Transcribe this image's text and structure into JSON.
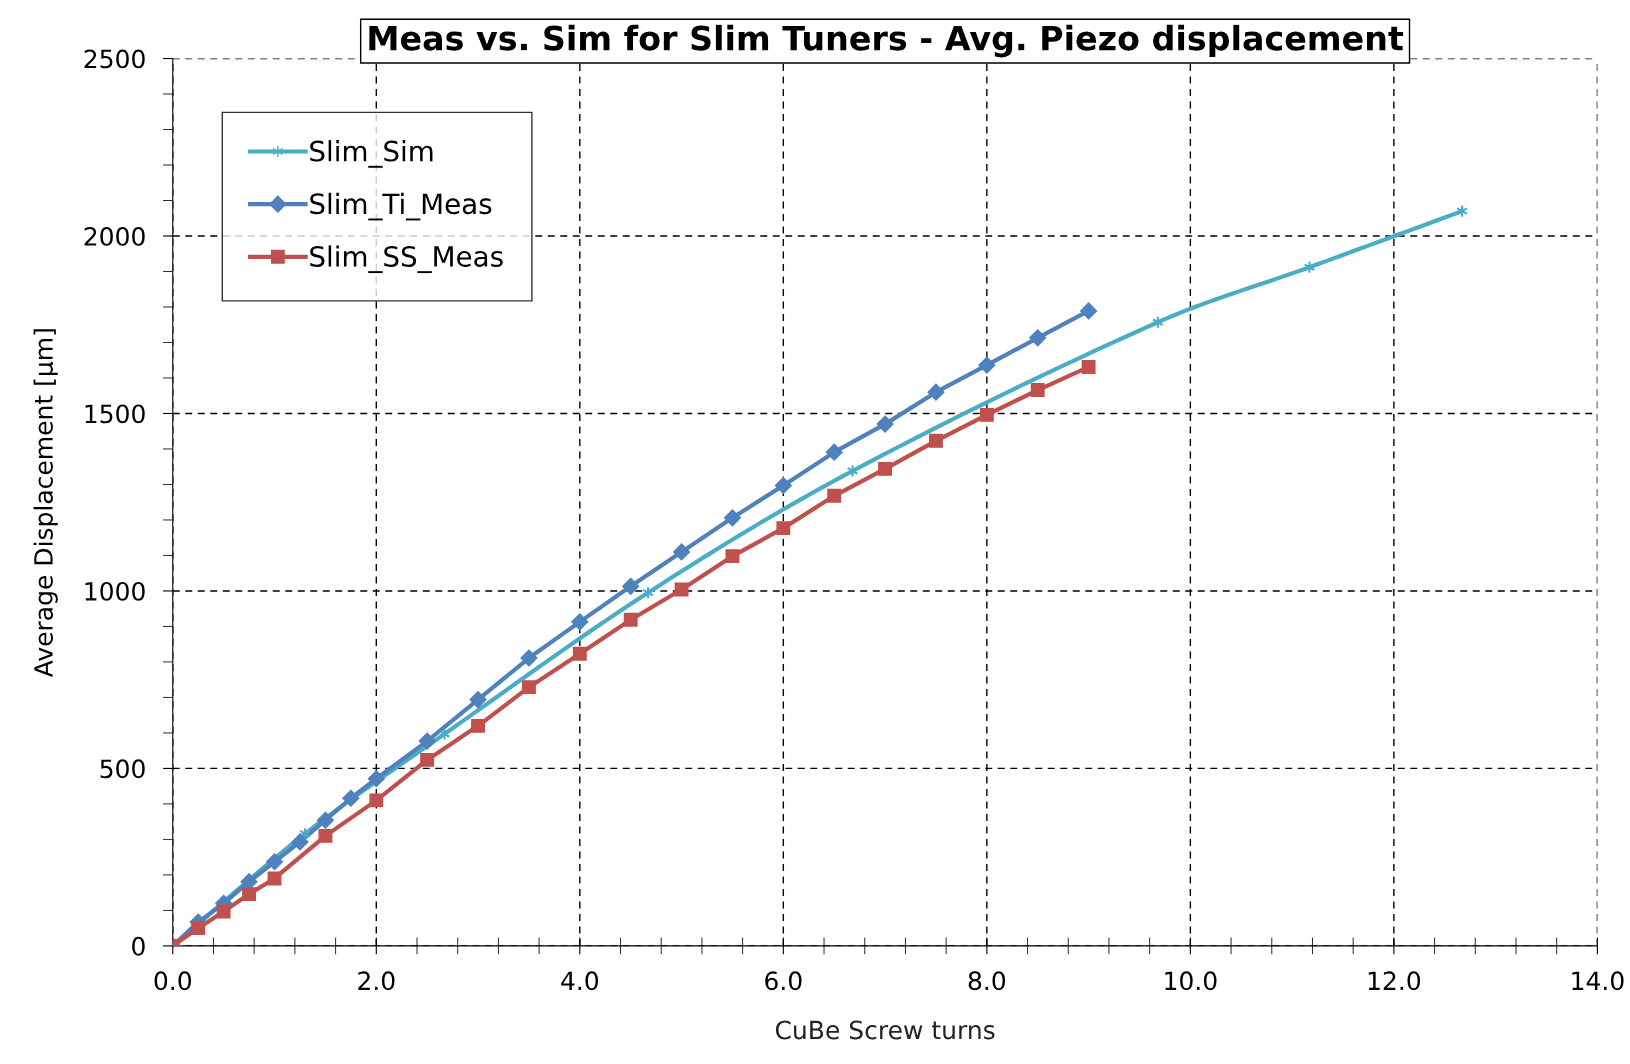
{
  "chart_data": {
    "type": "line",
    "title": "Meas vs. Sim for Slim Tuners - Avg. Piezo displacement",
    "xlabel": "CuBe Screw turns",
    "ylabel": "Average Displacement [µm]",
    "xlim": [
      0,
      14
    ],
    "xticks": [
      {
        "value": 0,
        "label": "0.0"
      },
      {
        "value": 2,
        "label": "2.0"
      },
      {
        "value": 4,
        "label": "4.0"
      },
      {
        "value": 6,
        "label": "6.0"
      },
      {
        "value": 8,
        "label": "8.0"
      },
      {
        "value": 10,
        "label": "10.0"
      },
      {
        "value": 12,
        "label": "12.0"
      },
      {
        "value": 14,
        "label": "14.0"
      }
    ],
    "ylim": [
      0,
      2500
    ],
    "yticks": [
      0,
      500,
      1000,
      1500,
      2000,
      2500
    ],
    "grid": true,
    "legend": "top left",
    "series": [
      {
        "name": "Slim_Sim",
        "color": "#4bacc6",
        "marker": "cross",
        "x": [
          0,
          1.3,
          2.67,
          4.67,
          6.68,
          9.68,
          11.17,
          12.67
        ],
        "values": [
          0,
          316,
          597,
          995,
          1338,
          1757,
          1912,
          2070
        ]
      },
      {
        "name": "Slim_Ti_Meas",
        "color": "#4f81bd",
        "marker": "diamond",
        "x": [
          0,
          0.25,
          0.5,
          0.75,
          1.0,
          1.25,
          1.5,
          1.75,
          2.0,
          2.5,
          3.0,
          3.5,
          4.0,
          4.5,
          5.0,
          5.5,
          6.0,
          6.5,
          7.0,
          7.5,
          8.0,
          8.5,
          9.0
        ],
        "values": [
          0,
          67,
          120,
          181,
          237,
          293,
          354,
          416,
          471,
          577,
          694,
          811,
          913,
          1013,
          1110,
          1206,
          1297,
          1391,
          1470,
          1560,
          1636,
          1713,
          1789
        ]
      },
      {
        "name": "Slim_SS_Meas",
        "color": "#c0504d",
        "marker": "square",
        "x": [
          0,
          0.25,
          0.5,
          0.75,
          1.0,
          1.5,
          2.0,
          2.5,
          3.0,
          3.5,
          4.0,
          4.5,
          5.0,
          5.5,
          6.0,
          6.5,
          7.0,
          7.5,
          8.0,
          8.5,
          9.0
        ],
        "values": [
          0,
          50,
          97,
          146,
          190,
          310,
          410,
          524,
          620,
          729,
          823,
          919,
          1004,
          1098,
          1177,
          1268,
          1344,
          1423,
          1496,
          1566,
          1631
        ]
      }
    ]
  }
}
